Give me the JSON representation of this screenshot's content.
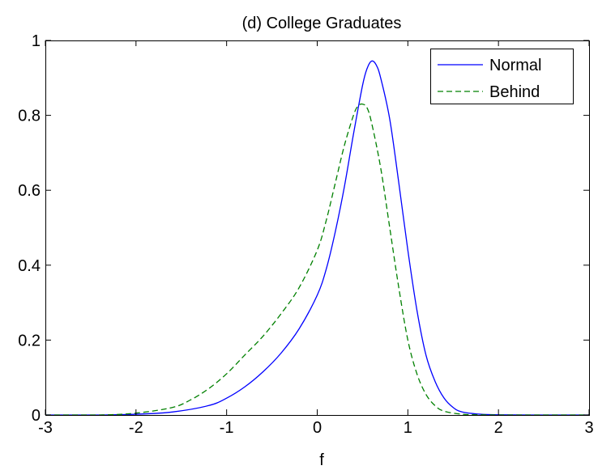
{
  "chart_data": {
    "type": "line",
    "title": "(d) College Graduates",
    "xlabel": "f",
    "ylabel": "",
    "xlim": [
      -3,
      3
    ],
    "ylim": [
      0,
      1
    ],
    "xticks": [
      -3,
      -2,
      -1,
      0,
      1,
      2,
      3
    ],
    "yticks": [
      0,
      0.2,
      0.4,
      0.6,
      0.8,
      1
    ],
    "xtick_labels": [
      "-3",
      "-2",
      "-1",
      "0",
      "1",
      "2",
      "3"
    ],
    "ytick_labels": [
      "0",
      "0.2",
      "0.4",
      "0.6",
      "0.8",
      "1"
    ],
    "grid": false,
    "legend_position": "top-right",
    "series": [
      {
        "name": "Normal",
        "color": "#0000ff",
        "style": "solid",
        "x": [
          -3,
          -2.4,
          -2.0,
          -1.6,
          -1.2,
          -1.0,
          -0.8,
          -0.6,
          -0.4,
          -0.2,
          0,
          0.1,
          0.2,
          0.3,
          0.4,
          0.5,
          0.55,
          0.6,
          0.65,
          0.7,
          0.8,
          0.9,
          1.0,
          1.1,
          1.2,
          1.3,
          1.4,
          1.5,
          1.6,
          1.8,
          2.0,
          2.4,
          3
        ],
        "y": [
          0,
          0,
          0.002,
          0.008,
          0.025,
          0.045,
          0.075,
          0.115,
          0.165,
          0.23,
          0.32,
          0.39,
          0.49,
          0.61,
          0.75,
          0.88,
          0.925,
          0.945,
          0.935,
          0.9,
          0.79,
          0.62,
          0.44,
          0.28,
          0.16,
          0.09,
          0.045,
          0.02,
          0.008,
          0.002,
          0.0005,
          0,
          0
        ]
      },
      {
        "name": "Behind",
        "color": "#008000",
        "style": "dashed",
        "x": [
          -3,
          -2.4,
          -2.0,
          -1.6,
          -1.4,
          -1.2,
          -1.0,
          -0.8,
          -0.6,
          -0.4,
          -0.2,
          0,
          0.1,
          0.2,
          0.3,
          0.4,
          0.45,
          0.5,
          0.55,
          0.6,
          0.7,
          0.8,
          0.9,
          1.0,
          1.1,
          1.2,
          1.3,
          1.4,
          1.6,
          1.8,
          2.0,
          2.4,
          3
        ],
        "y": [
          0,
          0,
          0.005,
          0.02,
          0.04,
          0.07,
          0.11,
          0.16,
          0.21,
          0.27,
          0.34,
          0.44,
          0.52,
          0.62,
          0.72,
          0.8,
          0.825,
          0.83,
          0.82,
          0.78,
          0.66,
          0.5,
          0.34,
          0.2,
          0.11,
          0.055,
          0.025,
          0.01,
          0.002,
          0.0005,
          0,
          0,
          0
        ]
      }
    ]
  }
}
